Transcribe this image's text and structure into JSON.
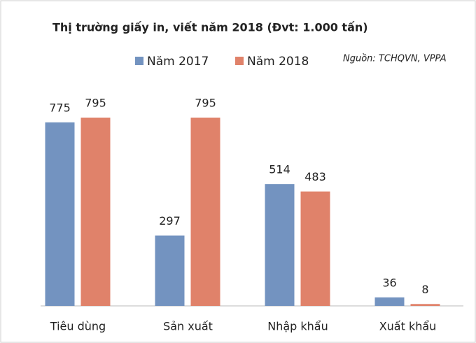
{
  "chart_data": {
    "type": "bar",
    "title": "Thị trường giấy in, viết năm 2018 (Đvt:  1.000 tấn)",
    "annotation": "Nguồn: TCHQVN, VPPA",
    "categories": [
      "Tiêu dùng",
      "Sản xuất",
      "Nhập khẩu",
      "Xuất khẩu"
    ],
    "series": [
      {
        "name": "Năm 2017",
        "color": "#7393c0",
        "values": [
          775,
          297,
          514,
          36
        ]
      },
      {
        "name": "Năm 2018",
        "color": "#e0826a",
        "values": [
          795,
          795,
          483,
          8
        ]
      }
    ],
    "legend": "top"
  }
}
